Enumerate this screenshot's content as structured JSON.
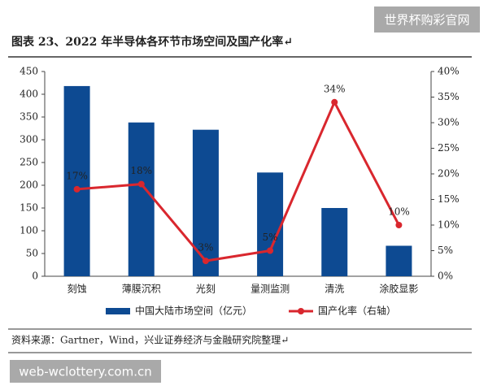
{
  "chart_data": {
    "type": "bar",
    "title": "图表 23、2022 年半导体各环节市场空间及国产化率↵",
    "source": "资料来源：Gartner，Wind，兴业证券经济与金融研究院整理↵",
    "categories": [
      "刻蚀",
      "薄膜沉积",
      "光刻",
      "量测监测",
      "清洗",
      "涂胶显影"
    ],
    "series": [
      {
        "name": "中国大陆市场空间（亿元）",
        "type": "bar",
        "color": "#0d4a92",
        "values": [
          418,
          338,
          322,
          228,
          150,
          67
        ]
      },
      {
        "name": "国产化率（右轴）",
        "type": "line",
        "axis": "y2",
        "color": "#d9272e",
        "values": [
          17,
          18,
          3,
          5,
          34,
          10
        ],
        "value_labels": [
          "17%",
          "18%",
          "3%",
          "5%",
          "34%",
          "10%"
        ]
      }
    ],
    "ylim": [
      0,
      450
    ],
    "yticks": [
      0,
      50,
      100,
      150,
      200,
      250,
      300,
      350,
      400,
      450
    ],
    "y2lim": [
      0,
      40
    ],
    "y2ticks": [
      {
        "value": 0,
        "label": "0%"
      },
      {
        "value": 5,
        "label": "5%"
      },
      {
        "value": 10,
        "label": "10%"
      },
      {
        "value": 15,
        "label": "15%"
      },
      {
        "value": 20,
        "label": "20%"
      },
      {
        "value": 25,
        "label": "25%"
      },
      {
        "value": 30,
        "label": "30%"
      },
      {
        "value": 35,
        "label": "35%"
      },
      {
        "value": 40,
        "label": "40%"
      }
    ]
  },
  "watermarks": [
    "世界杯购彩官网",
    "web-wclottery.com.cn"
  ]
}
